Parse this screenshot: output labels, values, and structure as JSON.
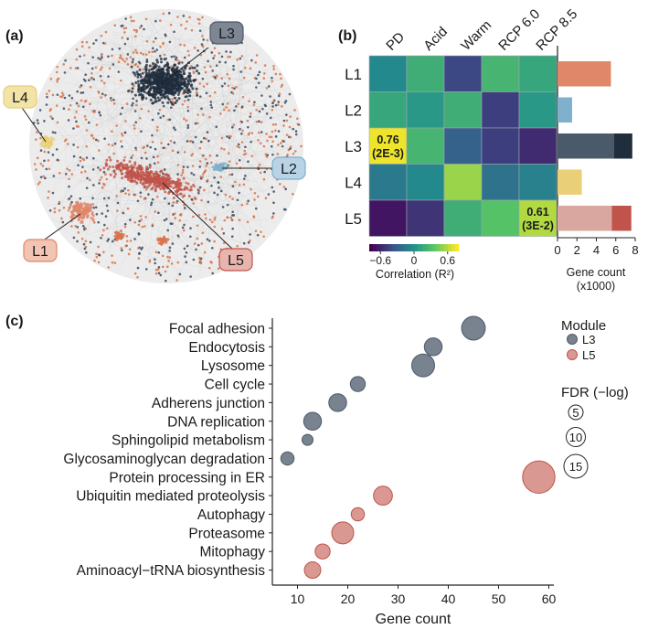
{
  "colors": {
    "L1": "#e0876a",
    "L2": "#7fb0cc",
    "L3": "#4b5a6a",
    "L3_dark": "#1f2d3d",
    "L4": "#e8cf78",
    "L5": "#c0544a",
    "L5_light": "#d9a6a0",
    "node_orange": "#d9744a",
    "node_navy": "#3a4a5e",
    "edge": "#c9c9c9"
  },
  "panel_a": {
    "letter": "(a)",
    "modules": [
      {
        "id": "L1",
        "label": "L1",
        "color_key": "L1"
      },
      {
        "id": "L2",
        "label": "L2",
        "color_key": "L2"
      },
      {
        "id": "L3",
        "label": "L3",
        "color_key": "L3"
      },
      {
        "id": "L4",
        "label": "L4",
        "color_key": "L4"
      },
      {
        "id": "L5",
        "label": "L5",
        "color_key": "L5"
      }
    ]
  },
  "panel_b": {
    "letter": "(b)",
    "columns": [
      "PD",
      "Acid",
      "Warm",
      "RCP 6.0",
      "RCP 8.5"
    ],
    "rows": [
      "L1",
      "L2",
      "L3",
      "L4",
      "L5"
    ],
    "correlation": [
      [
        -0.05,
        0.2,
        -0.45,
        0.25,
        0.15
      ],
      [
        0.15,
        0.05,
        0.2,
        -0.5,
        0.05
      ],
      [
        0.76,
        0.25,
        -0.3,
        -0.5,
        -0.6
      ],
      [
        -0.15,
        -0.05,
        0.55,
        -0.2,
        -0.1
      ],
      [
        -0.7,
        -0.55,
        0.2,
        0.35,
        0.61
      ]
    ],
    "annotations": [
      {
        "row": 2,
        "col": 0,
        "line1": "0.76",
        "line2": "(2E-3)"
      },
      {
        "row": 4,
        "col": 4,
        "line1": "0.61",
        "line2": "(3E-2)"
      }
    ],
    "colorbar": {
      "ticks": [
        "−0.6",
        "0",
        "0.6"
      ],
      "label": "Correlation (R²)",
      "range": [
        -0.8,
        0.8
      ]
    },
    "gene_count_bars": [
      {
        "module": "L1",
        "segments": [
          {
            "value": 5.5,
            "color_key": "L1"
          }
        ]
      },
      {
        "module": "L2",
        "segments": [
          {
            "value": 1.5,
            "color_key": "L2"
          }
        ]
      },
      {
        "module": "L3",
        "segments": [
          {
            "value": 5.8,
            "color_key": "L3"
          },
          {
            "value": 1.9,
            "color_key": "L3_dark"
          }
        ]
      },
      {
        "module": "L4",
        "segments": [
          {
            "value": 2.5,
            "color_key": "L4"
          }
        ]
      },
      {
        "module": "L5",
        "segments": [
          {
            "value": 5.6,
            "color_key": "L5_light"
          },
          {
            "value": 2.0,
            "color_key": "L5"
          }
        ]
      }
    ],
    "bar_axis": {
      "ticks": [
        "0",
        "2",
        "4",
        "6",
        "8"
      ],
      "range": [
        0,
        8
      ],
      "label_line1": "Gene count",
      "label_line2": "(x1000)"
    }
  },
  "chart_data": {
    "type": "scatter",
    "panel_letter": "(c)",
    "xlabel": "Gene count",
    "xticks": [
      "10",
      "20",
      "30",
      "40",
      "50",
      "60"
    ],
    "xlim": [
      5,
      61
    ],
    "categories": [
      "Focal adhesion",
      "Endocytosis",
      "Lysosome",
      "Cell cycle",
      "Adherens junction",
      "DNA replication",
      "Sphingolipid metabolism",
      "Glycosaminoglycan degradation",
      "Protein processing in ER",
      "Ubiquitin mediated proteolysis",
      "Autophagy",
      "Proteasome",
      "Mitophagy",
      "Aminoacyl−tRNA biosynthesis"
    ],
    "series": [
      {
        "name": "L3",
        "color_key": "L3",
        "points": [
          {
            "category": "Focal adhesion",
            "x": 45,
            "fdr": 11
          },
          {
            "category": "Endocytosis",
            "x": 37,
            "fdr": 5
          },
          {
            "category": "Lysosome",
            "x": 35,
            "fdr": 10
          },
          {
            "category": "Cell cycle",
            "x": 22,
            "fdr": 3
          },
          {
            "category": "Adherens junction",
            "x": 18,
            "fdr": 5
          },
          {
            "category": "DNA replication",
            "x": 13,
            "fdr": 5
          },
          {
            "category": "Sphingolipid metabolism",
            "x": 12,
            "fdr": 1
          },
          {
            "category": "Glycosaminoglycan degradation",
            "x": 8,
            "fdr": 2
          }
        ]
      },
      {
        "name": "L5",
        "color_key": "L5",
        "points": [
          {
            "category": "Protein processing in ER",
            "x": 58,
            "fdr": 24
          },
          {
            "category": "Ubiquitin mediated proteolysis",
            "x": 27,
            "fdr": 6
          },
          {
            "category": "Autophagy",
            "x": 22,
            "fdr": 2
          },
          {
            "category": "Proteasome",
            "x": 19,
            "fdr": 9
          },
          {
            "category": "Mitophagy",
            "x": 15,
            "fdr": 3
          },
          {
            "category": "Aminoacyl−tRNA biosynthesis",
            "x": 13,
            "fdr": 4
          }
        ]
      }
    ],
    "legend": {
      "module_title": "Module",
      "fdr_title": "FDR (−log)",
      "fdr_sizes": [
        {
          "label": "5",
          "value": 5
        },
        {
          "label": "10",
          "value": 10
        },
        {
          "label": "15",
          "value": 15
        }
      ],
      "placement": "right"
    }
  }
}
